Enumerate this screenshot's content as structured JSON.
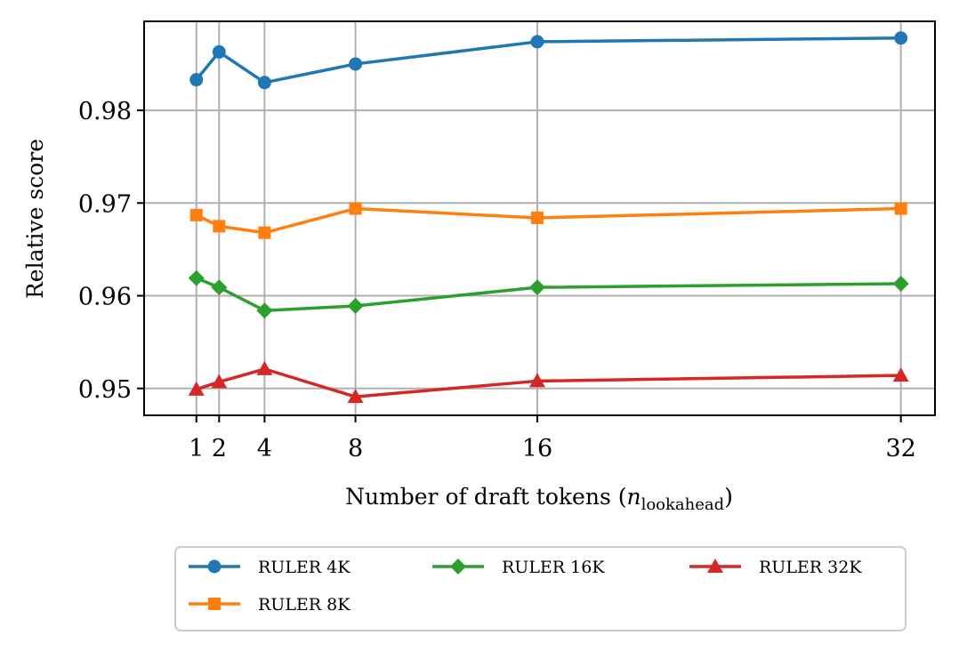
{
  "chart_data": {
    "type": "line",
    "x": [
      1,
      2,
      4,
      8,
      16,
      32
    ],
    "x_ticks": [
      "1",
      "2",
      "4",
      "8",
      "16",
      "32"
    ],
    "xlim": [
      -1.3,
      33.5
    ],
    "ylim": [
      0.9471,
      0.9896
    ],
    "y_ticks": [
      0.95,
      0.96,
      0.97,
      0.98
    ],
    "y_tick_labels": [
      "0.95",
      "0.96",
      "0.97",
      "0.98"
    ],
    "xlabel_main": "Number of draft tokens (",
    "xlabel_var": "n",
    "xlabel_sub": "lookahead",
    "xlabel_close": ")",
    "ylabel": "Relative score",
    "grid": true,
    "legend_placement": "below",
    "series": [
      {
        "name": "RULER 4K",
        "marker": "circle",
        "color": "#1f77b4",
        "values": [
          0.9833,
          0.9863,
          0.983,
          0.985,
          0.9874,
          0.9878
        ]
      },
      {
        "name": "RULER 8K",
        "marker": "square",
        "color": "#ff7f0e",
        "values": [
          0.9687,
          0.9675,
          0.9668,
          0.9694,
          0.9684,
          0.9694
        ]
      },
      {
        "name": "RULER 16K",
        "marker": "diamond",
        "color": "#2ca02c",
        "values": [
          0.9619,
          0.9609,
          0.9584,
          0.9589,
          0.9609,
          0.9613
        ]
      },
      {
        "name": "RULER 32K",
        "marker": "triangle",
        "color": "#d62728",
        "values": [
          0.9499,
          0.9507,
          0.9521,
          0.9491,
          0.9508,
          0.9514
        ]
      }
    ]
  }
}
